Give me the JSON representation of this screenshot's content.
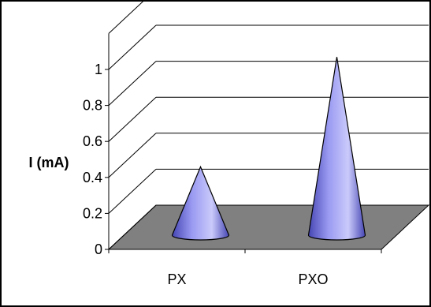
{
  "chart_data": {
    "type": "bar",
    "style": "3d-cone",
    "categories": [
      "PX",
      "PXO"
    ],
    "series": [
      {
        "values": [
          0.38,
          0.99
        ]
      }
    ],
    "title": "",
    "xlabel": "",
    "ylabel": "I (mA)",
    "ylim": [
      0,
      1
    ],
    "yticks": [
      {
        "value": 0,
        "label": "0"
      },
      {
        "value": 0.2,
        "label": "0.2"
      },
      {
        "value": 0.4,
        "label": "0.4"
      },
      {
        "value": 0.6,
        "label": "0.6"
      },
      {
        "value": 0.8,
        "label": "0.8"
      },
      {
        "value": 1,
        "label": "1"
      }
    ],
    "grid": true,
    "legend": "none",
    "colors": {
      "cone": "#9A9AF2",
      "cone_dark": "#4646B4",
      "cone_light": "#CACAFB",
      "floor": "#808080",
      "frame": "#000000"
    }
  }
}
